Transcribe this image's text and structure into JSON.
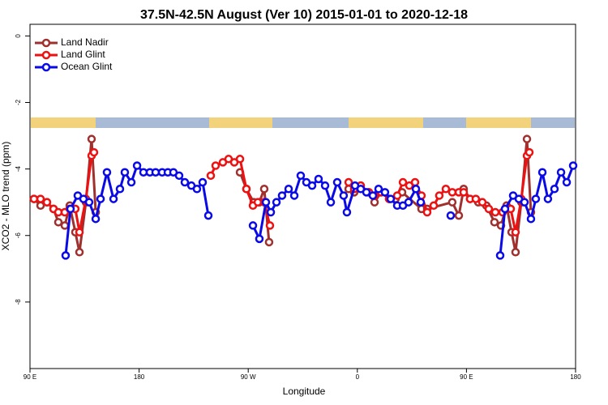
{
  "chart_data": {
    "type": "line",
    "title": "37.5N-42.5N August (Ver 10)   2015-01-01 to 2020-12-18",
    "x_label": "Longitude",
    "y_label": "XCO2 - MLO trend (ppm)",
    "xlim": [
      90,
      540
    ],
    "ylim": [
      -10,
      0.35
    ],
    "xticks": [
      {
        "value": 90,
        "label": "90 E"
      },
      180,
      {
        "value": 270,
        "label": "90 W"
      },
      {
        "value": 360,
        "label": "0"
      },
      {
        "value": 450,
        "label": "90 E"
      },
      {
        "value": 540,
        "label": "180"
      }
    ],
    "yticks": [
      0,
      -2,
      -4,
      -6,
      -8
    ],
    "legend": "top-left",
    "series": [
      {
        "name": "Land Nadir",
        "color": "#a0302e",
        "x": [
          93.3,
          98.7,
          104.0,
          109.4,
          113.4,
          118.7,
          122.8,
          127.4,
          130.8,
          136.1,
          140.8,
          144.2,
          null,
          263.2,
          268.5,
          274.5,
          279.2,
          283.2,
          287.2,
          null,
          352.8,
          357.4,
          362.8,
          369.5,
          374.2,
          379.5,
          386.2,
          391.5,
          396.9,
          412.9,
          417.6,
          438.3,
          443.7,
          447.7,
          453.0,
          459.7,
          466.4,
          473.1,
          478.5,
          483.1,
          487.2,
          490.5,
          495.2,
          499.9,
          503.2
        ],
        "values": [
          -4.9,
          -5.1,
          -5.0,
          -5.2,
          -5.6,
          -5.7,
          -5.1,
          -5.9,
          -6.5,
          -5.0,
          -3.1,
          -5.3,
          null,
          -4.1,
          -4.6,
          -5.0,
          -5.0,
          -4.6,
          -6.2,
          null,
          -4.6,
          -4.7,
          -4.5,
          -4.7,
          -5.0,
          -4.7,
          -4.9,
          -4.9,
          -4.7,
          -5.2,
          -5.2,
          -5.0,
          -5.4,
          -4.6,
          -4.9,
          -5.0,
          -5.1,
          -5.6,
          -5.7,
          -5.1,
          -5.9,
          -6.5,
          -5.0,
          -3.1,
          -5.3
        ]
      },
      {
        "name": "Land Glint",
        "color": "#ee1111",
        "x": [
          93.3,
          98.7,
          104.0,
          109.4,
          113.4,
          118.7,
          122.8,
          127.4,
          130.8,
          136.1,
          140.8,
          142.8,
          null,
          239.1,
          243.1,
          249.1,
          253.8,
          258.5,
          263.2,
          268.5,
          273.9,
          277.9,
          283.2,
          287.9,
          null,
          352.8,
          357.4,
          362.8,
          369.5,
          374.2,
          379.5,
          386.2,
          392.9,
          397.6,
          402.9,
          407.6,
          412.9,
          417.6,
          423.0,
          427.6,
          433.0,
          438.3,
          443.7,
          447.7,
          453.0,
          457.7,
          463.1,
          468.4,
          473.8,
          479.8,
          486.5,
          490.5,
          495.2,
          499.9,
          501.9
        ],
        "values": [
          -4.9,
          -4.9,
          -5.0,
          -5.2,
          -5.3,
          -5.3,
          -5.2,
          -5.2,
          -5.9,
          -4.9,
          -3.6,
          -3.5,
          null,
          -4.2,
          -3.9,
          -3.8,
          -3.7,
          -3.8,
          -3.7,
          -4.6,
          -5.1,
          -5.0,
          -5.0,
          -5.7,
          null,
          -4.4,
          -4.6,
          -4.5,
          -4.7,
          -4.8,
          -4.7,
          -4.9,
          -4.8,
          -4.4,
          -4.5,
          -4.4,
          -4.8,
          -5.3,
          -5.1,
          -4.8,
          -4.6,
          -4.7,
          -4.7,
          -4.7,
          -4.9,
          -4.9,
          -5.0,
          -5.2,
          -5.3,
          -5.3,
          -5.2,
          -5.9,
          -4.9,
          -3.6,
          -3.5
        ]
      },
      {
        "name": "Ocean Glint",
        "color": "#0a0ae6",
        "x": [
          119.4,
          123.4,
          129.4,
          134.1,
          138.8,
          144.2,
          148.2,
          153.5,
          158.9,
          164.2,
          168.2,
          173.6,
          178.3,
          183.6,
          188.9,
          193.6,
          199.0,
          203.7,
          208.3,
          213.0,
          217.7,
          223.1,
          227.7,
          232.4,
          237.1,
          null,
          273.9,
          279.2,
          284.6,
          288.6,
          293.3,
          297.9,
          303.3,
          308.0,
          313.3,
          318.0,
          322.7,
          328.0,
          333.4,
          338.1,
          343.4,
          348.7,
          351.4,
          358.1,
          362.8,
          367.5,
          372.8,
          377.5,
          382.8,
          387.5,
          392.9,
          397.6,
          402.2,
          408.3,
          412.3,
          null,
          437.0,
          null,
          477.8,
          481.8,
          488.5,
          493.2,
          497.9,
          503.2,
          507.2,
          512.6,
          517.2,
          522.6,
          528.0,
          532.7,
          538.0
        ],
        "values": [
          -6.6,
          -5.2,
          -4.8,
          -4.9,
          -5.0,
          -5.5,
          -4.9,
          -4.1,
          -4.9,
          -4.6,
          -4.1,
          -4.4,
          -3.9,
          -4.1,
          -4.1,
          -4.1,
          -4.1,
          -4.1,
          -4.1,
          -4.2,
          -4.4,
          -4.5,
          -4.6,
          -4.4,
          -5.4,
          null,
          -5.7,
          -6.1,
          -5.0,
          -5.3,
          -5.0,
          -4.8,
          -4.6,
          -4.8,
          -4.2,
          -4.4,
          -4.5,
          -4.3,
          -4.5,
          -5.0,
          -4.4,
          -4.8,
          -5.3,
          -4.5,
          -4.6,
          -4.7,
          -4.8,
          -4.6,
          -4.7,
          -4.9,
          -5.1,
          -5.1,
          -5.0,
          -4.6,
          -5.0,
          null,
          -5.4,
          null,
          -6.6,
          -5.2,
          -4.8,
          -4.9,
          -5.0,
          -5.5,
          -4.9,
          -4.1,
          -4.9,
          -4.6,
          -4.1,
          -4.4,
          -3.9
        ]
      }
    ]
  }
}
